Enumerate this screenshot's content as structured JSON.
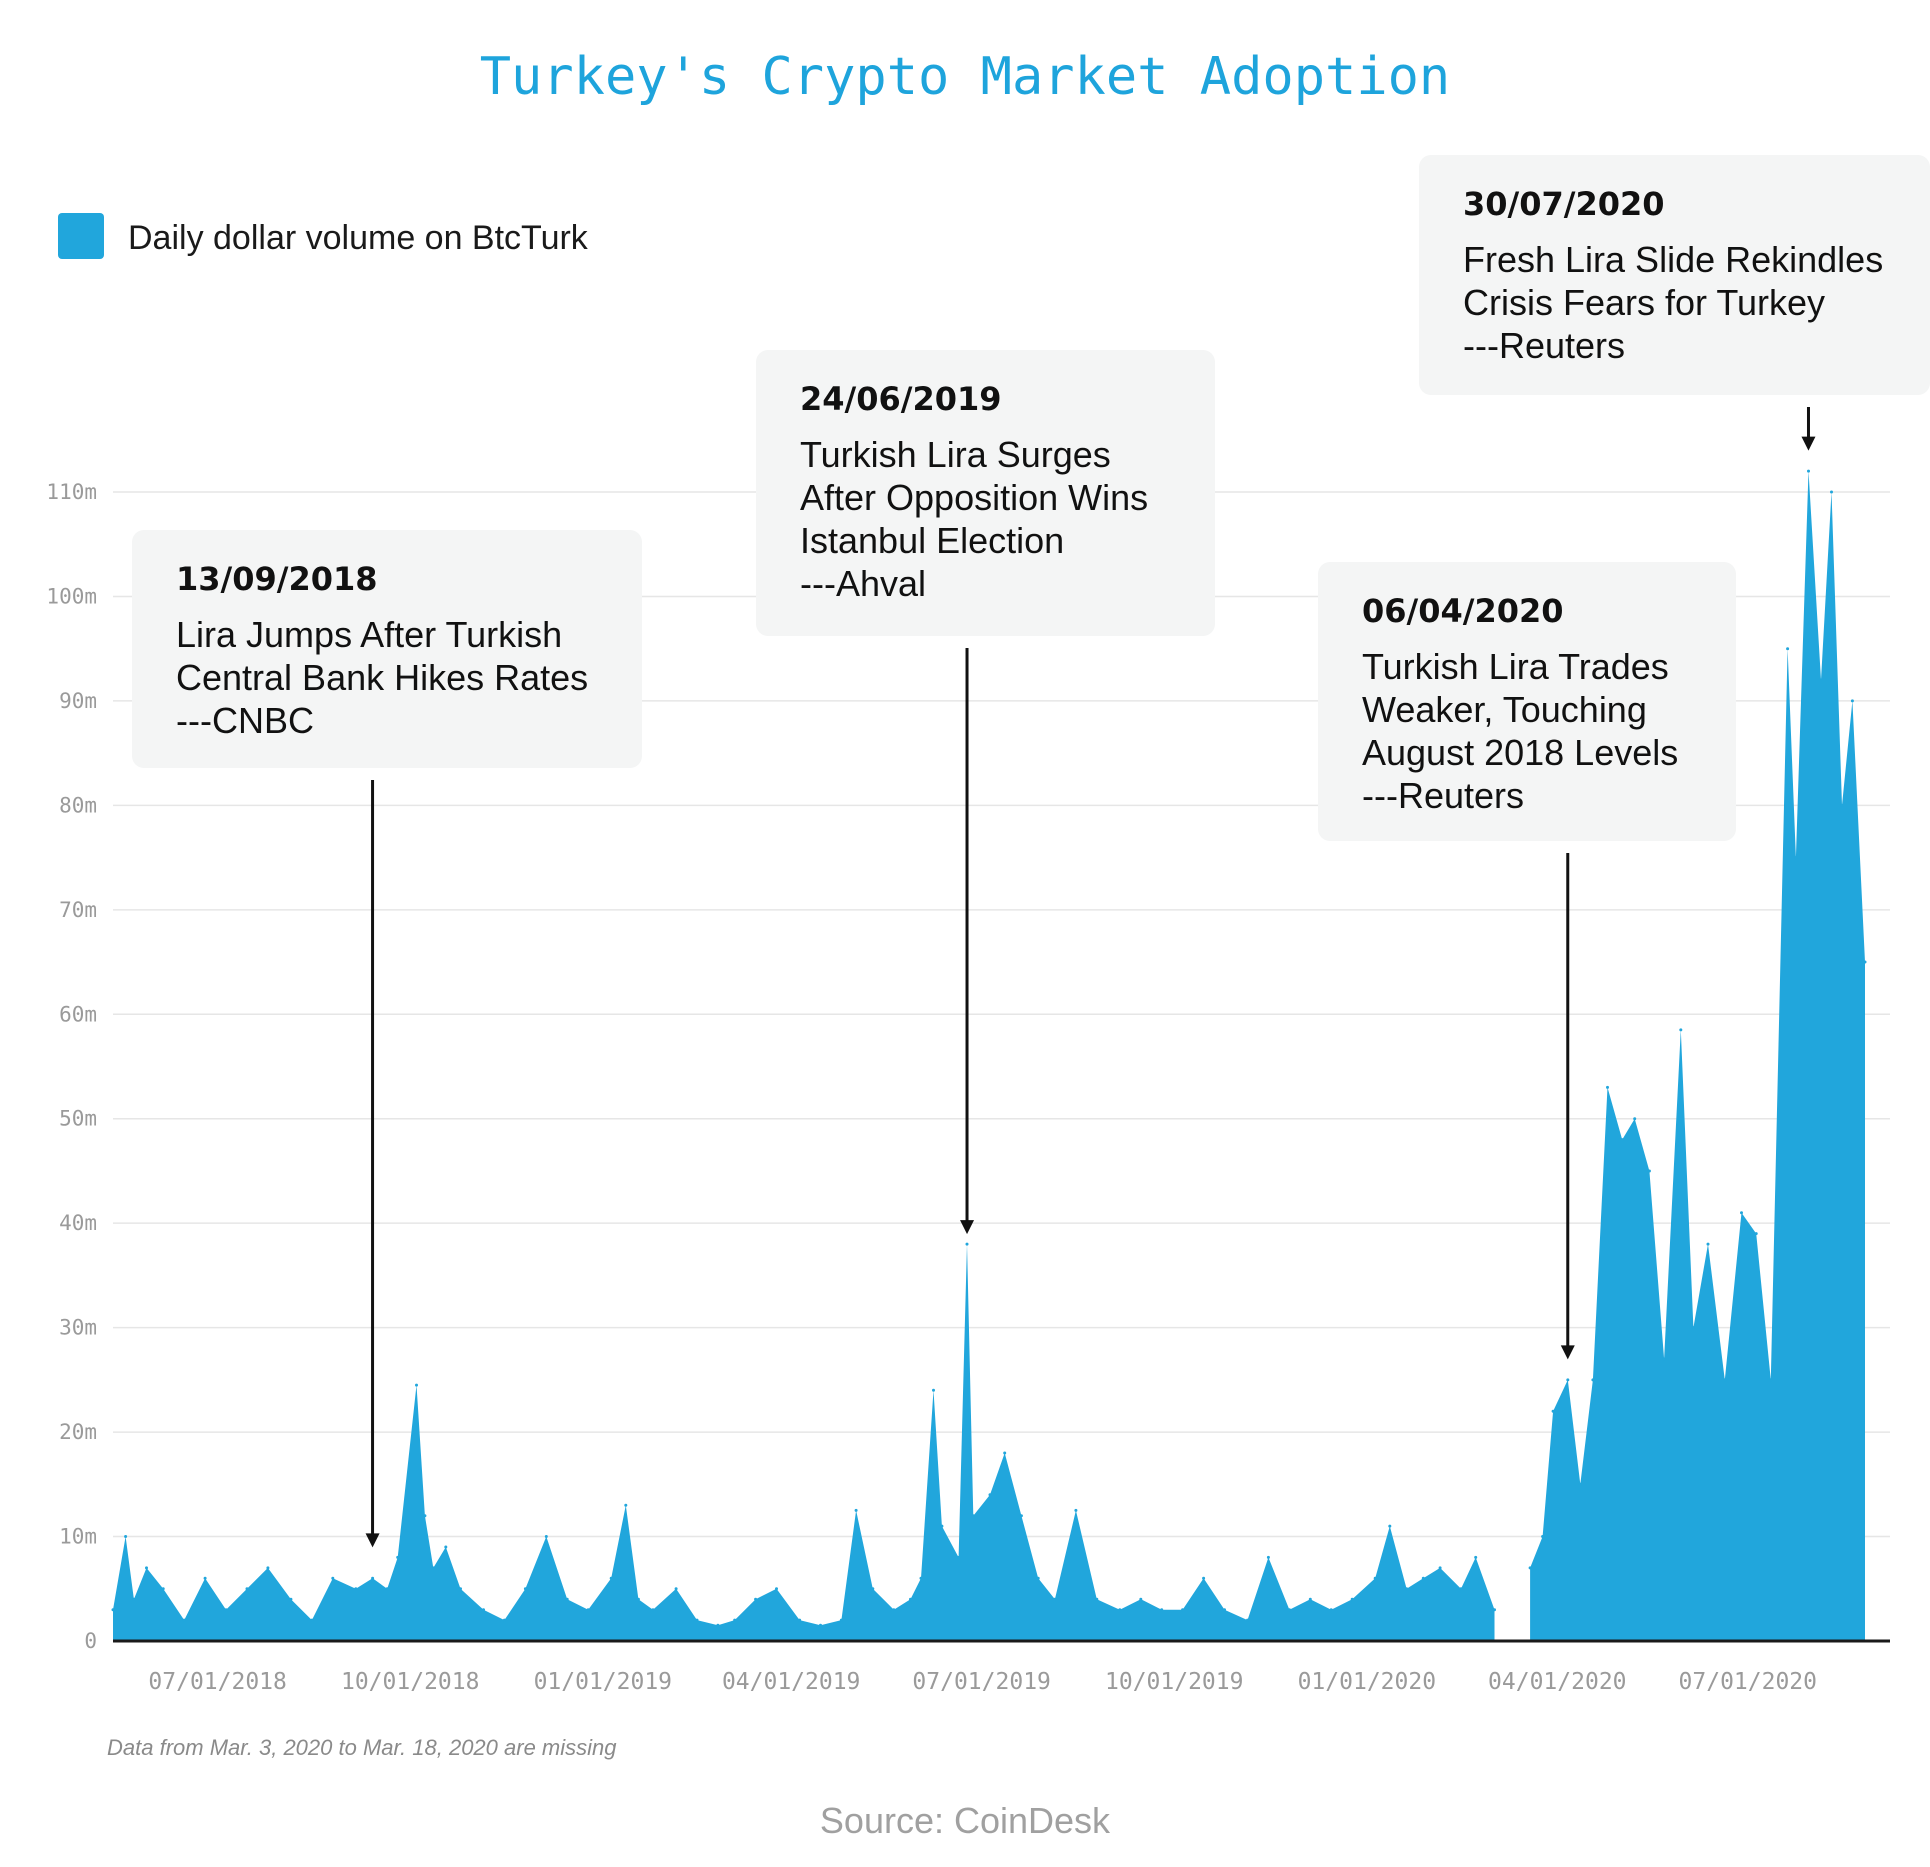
{
  "chart_data": {
    "type": "area",
    "title": "Turkey's Crypto Market Adoption",
    "ylim": [
      0,
      110
    ],
    "y_ticks": [
      "0",
      "10m",
      "20m",
      "30m",
      "40m",
      "50m",
      "60m",
      "70m",
      "80m",
      "90m",
      "100m",
      "110m"
    ],
    "x_ticks": [
      "07/01/2018",
      "10/01/2018",
      "01/01/2019",
      "04/01/2019",
      "07/01/2019",
      "10/01/2019",
      "01/01/2020",
      "04/01/2020",
      "07/01/2020"
    ],
    "x_range": [
      "2018-05-12",
      "2020-08-26"
    ],
    "grid": true,
    "legend_position": "top-left",
    "series": [
      {
        "name": "Daily dollar volume on BtcTurk",
        "color": "#21a6dc",
        "points": [
          [
            "2018-05-12",
            3
          ],
          [
            "2018-05-18",
            10
          ],
          [
            "2018-05-22",
            4
          ],
          [
            "2018-05-28",
            7
          ],
          [
            "2018-06-05",
            5
          ],
          [
            "2018-06-15",
            2
          ],
          [
            "2018-06-25",
            6
          ],
          [
            "2018-07-05",
            3
          ],
          [
            "2018-07-15",
            5
          ],
          [
            "2018-07-25",
            7
          ],
          [
            "2018-08-05",
            4
          ],
          [
            "2018-08-15",
            2
          ],
          [
            "2018-08-25",
            6
          ],
          [
            "2018-09-05",
            5
          ],
          [
            "2018-09-13",
            6
          ],
          [
            "2018-09-20",
            5
          ],
          [
            "2018-09-25",
            8
          ],
          [
            "2018-10-04",
            24.5
          ],
          [
            "2018-10-08",
            12
          ],
          [
            "2018-10-12",
            7
          ],
          [
            "2018-10-18",
            9
          ],
          [
            "2018-10-25",
            5
          ],
          [
            "2018-11-05",
            3
          ],
          [
            "2018-11-15",
            2
          ],
          [
            "2018-11-25",
            5
          ],
          [
            "2018-12-05",
            10
          ],
          [
            "2018-12-15",
            4
          ],
          [
            "2018-12-25",
            3
          ],
          [
            "2019-01-05",
            6
          ],
          [
            "2019-01-12",
            13
          ],
          [
            "2019-01-18",
            4
          ],
          [
            "2019-01-25",
            3
          ],
          [
            "2019-02-05",
            5
          ],
          [
            "2019-02-15",
            2
          ],
          [
            "2019-02-25",
            1.5
          ],
          [
            "2019-03-05",
            2
          ],
          [
            "2019-03-15",
            4
          ],
          [
            "2019-03-25",
            5
          ],
          [
            "2019-04-05",
            2
          ],
          [
            "2019-04-15",
            1.5
          ],
          [
            "2019-04-25",
            2
          ],
          [
            "2019-05-02",
            12.5
          ],
          [
            "2019-05-10",
            5
          ],
          [
            "2019-05-20",
            3
          ],
          [
            "2019-05-28",
            4
          ],
          [
            "2019-06-02",
            6
          ],
          [
            "2019-06-08",
            24
          ],
          [
            "2019-06-12",
            11
          ],
          [
            "2019-06-20",
            8
          ],
          [
            "2019-06-24",
            38
          ],
          [
            "2019-06-27",
            12
          ],
          [
            "2019-07-05",
            14
          ],
          [
            "2019-07-12",
            18
          ],
          [
            "2019-07-20",
            12
          ],
          [
            "2019-07-28",
            6
          ],
          [
            "2019-08-05",
            4
          ],
          [
            "2019-08-15",
            12.5
          ],
          [
            "2019-08-25",
            4
          ],
          [
            "2019-09-05",
            3
          ],
          [
            "2019-09-15",
            4
          ],
          [
            "2019-09-25",
            3
          ],
          [
            "2019-10-05",
            3
          ],
          [
            "2019-10-15",
            6
          ],
          [
            "2019-10-25",
            3
          ],
          [
            "2019-11-05",
            2
          ],
          [
            "2019-11-15",
            8
          ],
          [
            "2019-11-25",
            3
          ],
          [
            "2019-12-05",
            4
          ],
          [
            "2019-12-15",
            3
          ],
          [
            "2019-12-25",
            4
          ],
          [
            "2020-01-05",
            6
          ],
          [
            "2020-01-12",
            11
          ],
          [
            "2020-01-20",
            5
          ],
          [
            "2020-01-28",
            6
          ],
          [
            "2020-02-05",
            7
          ],
          [
            "2020-02-15",
            5
          ],
          [
            "2020-02-22",
            8
          ],
          [
            "2020-03-02",
            3
          ],
          [
            "2020-03-19",
            7
          ],
          [
            "2020-03-25",
            10
          ],
          [
            "2020-03-30",
            22
          ],
          [
            "2020-04-06",
            25
          ],
          [
            "2020-04-12",
            15
          ],
          [
            "2020-04-18",
            25
          ],
          [
            "2020-04-25",
            53
          ],
          [
            "2020-05-02",
            48
          ],
          [
            "2020-05-08",
            50
          ],
          [
            "2020-05-15",
            45
          ],
          [
            "2020-05-22",
            27
          ],
          [
            "2020-05-30",
            58.5
          ],
          [
            "2020-06-05",
            30
          ],
          [
            "2020-06-12",
            38
          ],
          [
            "2020-06-20",
            25
          ],
          [
            "2020-06-28",
            41
          ],
          [
            "2020-07-05",
            39
          ],
          [
            "2020-07-12",
            25
          ],
          [
            "2020-07-20",
            95
          ],
          [
            "2020-07-24",
            75
          ],
          [
            "2020-07-30",
            112
          ],
          [
            "2020-08-05",
            92
          ],
          [
            "2020-08-10",
            110
          ],
          [
            "2020-08-15",
            80
          ],
          [
            "2020-08-20",
            90
          ],
          [
            "2020-08-26",
            65
          ]
        ]
      }
    ],
    "gap": {
      "from": "2020-03-03",
      "to": "2020-03-18"
    },
    "annotations": [
      {
        "date": "13/09/2018",
        "lines": [
          "Lira Jumps After Turkish",
          "Central Bank Hikes Rates",
          "---CNBC"
        ],
        "target_date": "2018-09-13",
        "target_value": 8
      },
      {
        "date": "24/06/2019",
        "lines": [
          "Turkish Lira Surges",
          "After Opposition Wins",
          "Istanbul Election",
          "---Ahval"
        ],
        "target_date": "2019-06-24",
        "target_value": 38
      },
      {
        "date": "06/04/2020",
        "lines": [
          "Turkish Lira Trades",
          "Weaker, Touching",
          "August 2018 Levels",
          "---Reuters"
        ],
        "target_date": "2020-04-06",
        "target_value": 26
      },
      {
        "date": "30/07/2020",
        "lines": [
          "Fresh Lira Slide Rekindles",
          "Crisis Fears for Turkey",
          "---Reuters"
        ],
        "target_date": "2020-07-30",
        "target_value": 113
      }
    ]
  },
  "footnote": "Data from Mar. 3, 2020 to Mar. 18, 2020 are missing",
  "source": "Source: CoinDesk"
}
